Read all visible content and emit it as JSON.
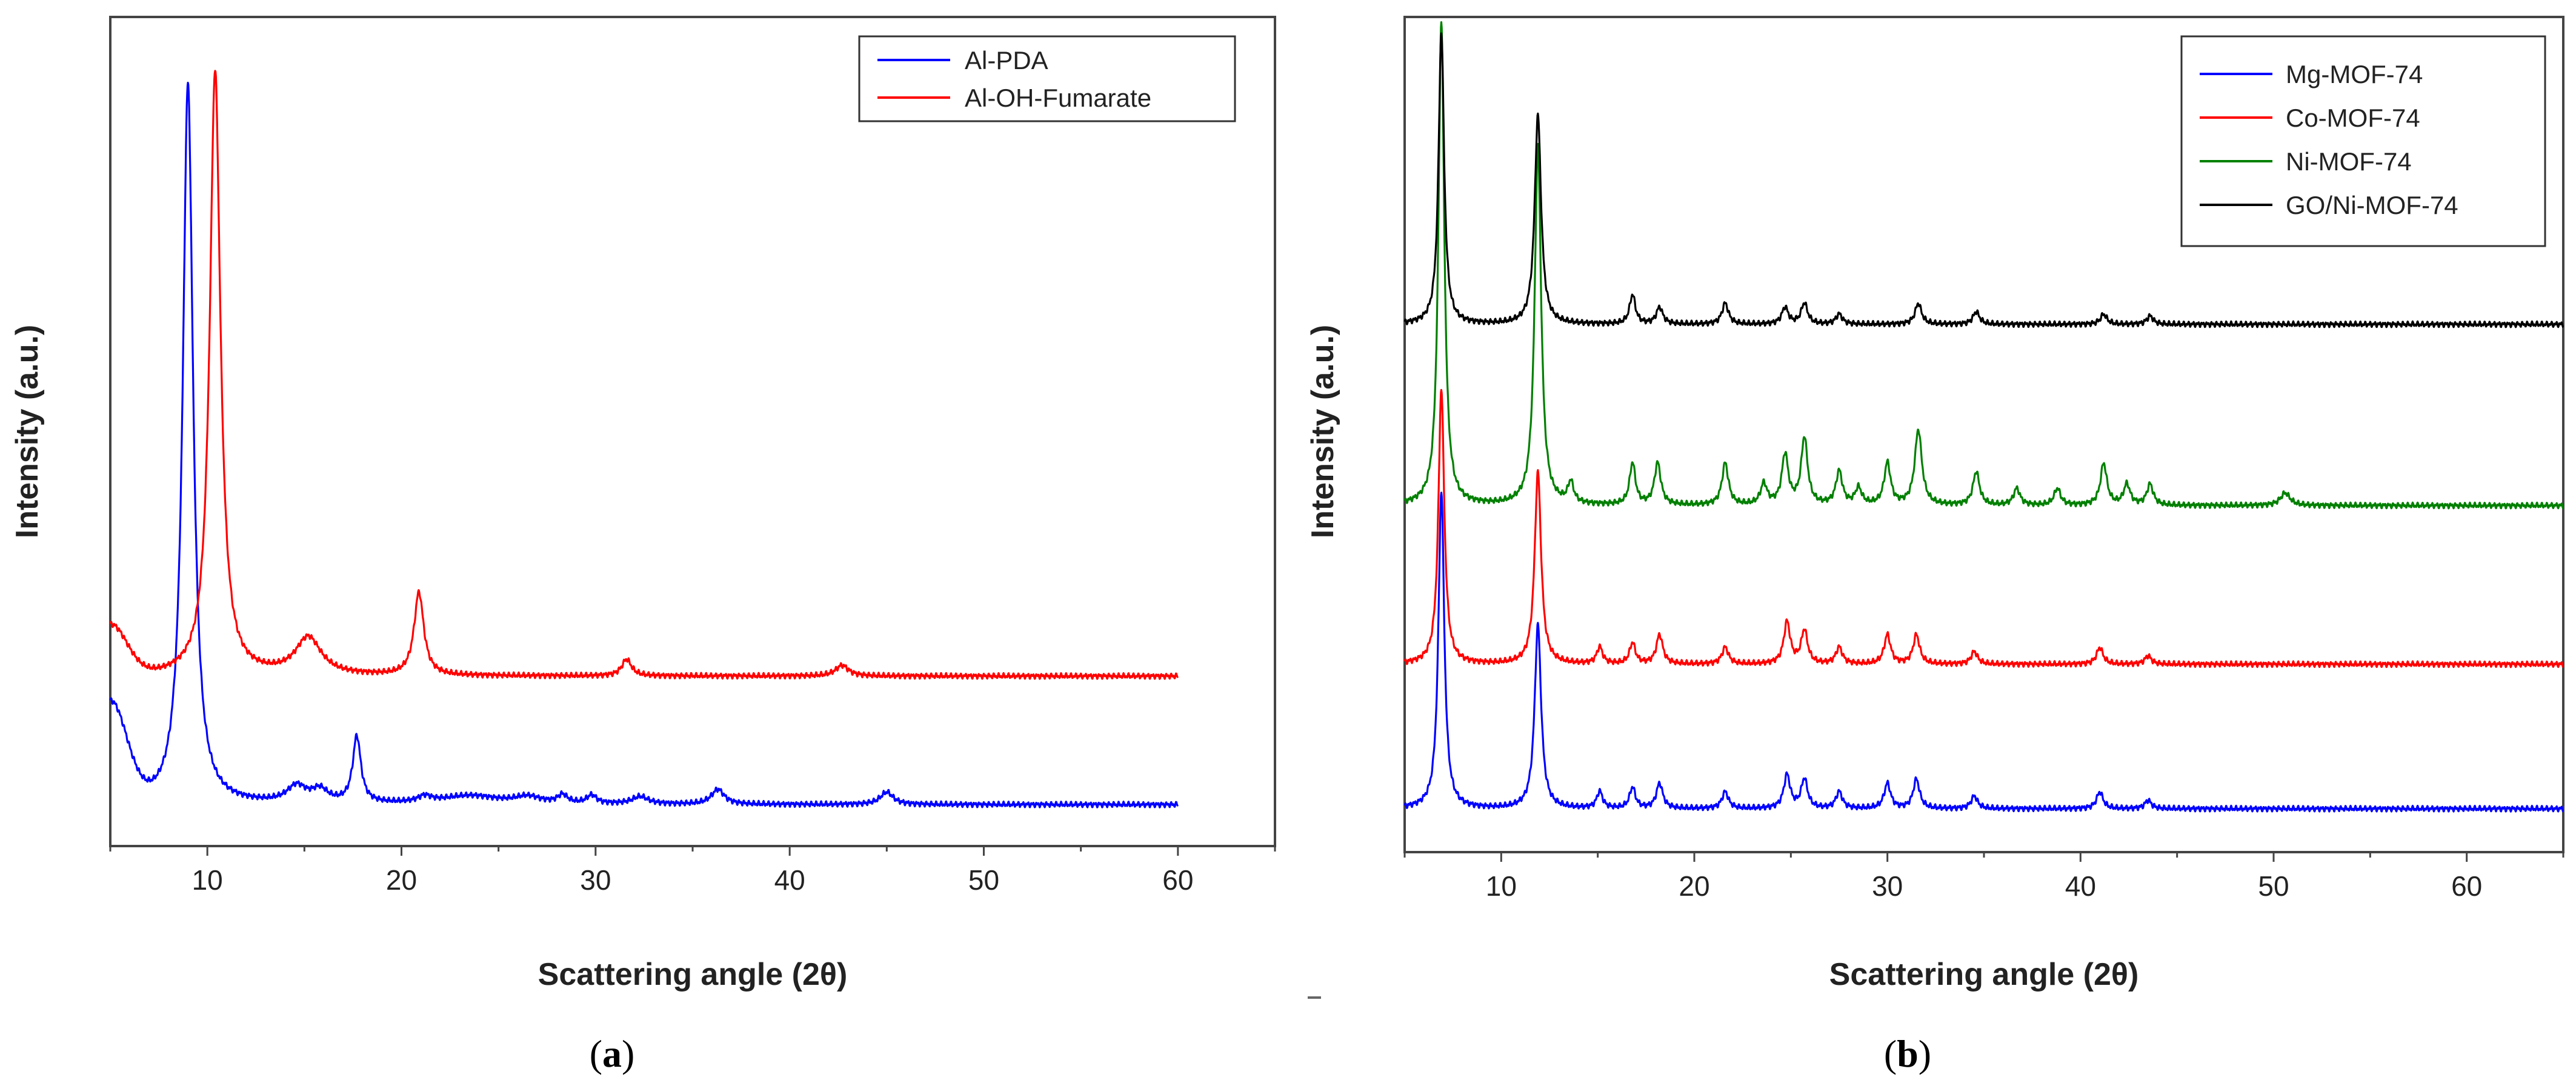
{
  "chart_data": [
    {
      "type": "line",
      "panel_label_open": "(",
      "panel_label_letter": "a",
      "panel_label_close": ")",
      "xlabel": "Scattering angle (2θ)",
      "ylabel": "Intensity (a.u.)",
      "xlim": [
        5,
        65
      ],
      "ylim": [
        0,
        100
      ],
      "xticks": [
        10,
        20,
        30,
        40,
        50,
        60
      ],
      "legend_position": "top-right",
      "series": [
        {
          "name": "Al-PDA",
          "color": "#0000ff",
          "offset": 3,
          "baseline": 2,
          "start_bump": 12,
          "x_range": [
            5,
            60
          ],
          "peaks": [
            [
              9.0,
              87,
              0.32
            ],
            [
              14.6,
              2,
              0.6
            ],
            [
              15.8,
              1.5,
              0.5
            ],
            [
              17.7,
              8,
              0.25
            ],
            [
              21.2,
              0.7,
              0.4
            ],
            [
              23.5,
              1.0,
              1.8
            ],
            [
              26.5,
              0.8,
              0.8
            ],
            [
              28.3,
              1.0,
              0.3
            ],
            [
              29.8,
              1.0,
              0.3
            ],
            [
              32.3,
              0.9,
              0.5
            ],
            [
              36.3,
              1.8,
              0.4
            ],
            [
              45.0,
              1.5,
              0.4
            ]
          ]
        },
        {
          "name": "Al-OH-Fumarate",
          "color": "#ff0000",
          "offset": 20,
          "baseline": 0.5,
          "start_bump": 6,
          "x_range": [
            5,
            60
          ],
          "peaks": [
            [
              10.4,
              73,
              0.33
            ],
            [
              15.2,
              4.5,
              0.8
            ],
            [
              20.9,
              10,
              0.3
            ],
            [
              31.6,
              2,
              0.3
            ],
            [
              42.7,
              1.3,
              0.4
            ]
          ]
        }
      ]
    },
    {
      "type": "line",
      "panel_label_open": "(",
      "panel_label_letter": "b",
      "panel_label_close": ")",
      "xlabel": "Scattering angle (2θ)",
      "ylabel": "Intensity (a.u.)",
      "xlim": [
        5,
        65
      ],
      "ylim": [
        0,
        100
      ],
      "xticks": [
        10,
        20,
        30,
        40,
        50,
        60
      ],
      "legend_position": "top-right",
      "series": [
        {
          "name": "Mg-MOF-74",
          "color": "#0000ff",
          "offset": 4,
          "baseline": 1.2,
          "start_bump": 0,
          "x_range": [
            5,
            65
          ],
          "peaks": [
            [
              6.9,
              38,
              0.18
            ],
            [
              11.9,
              22,
              0.2
            ],
            [
              15.1,
              2,
              0.18
            ],
            [
              16.8,
              2.5,
              0.18
            ],
            [
              18.2,
              3,
              0.2
            ],
            [
              21.6,
              2,
              0.2
            ],
            [
              24.8,
              4,
              0.2
            ],
            [
              25.7,
              3.5,
              0.2
            ],
            [
              27.5,
              2,
              0.2
            ],
            [
              30.0,
              3,
              0.2
            ],
            [
              31.5,
              3.5,
              0.2
            ],
            [
              34.5,
              1.5,
              0.2
            ],
            [
              41.0,
              2,
              0.2
            ],
            [
              43.5,
              1,
              0.2
            ]
          ]
        },
        {
          "name": "Co-MOF-74",
          "color": "#ff0000",
          "offset": 20,
          "baseline": 2.5,
          "start_bump": 0,
          "x_range": [
            5,
            65
          ],
          "peaks": [
            [
              6.9,
              33,
              0.18
            ],
            [
              11.9,
              23,
              0.2
            ],
            [
              15.1,
              2,
              0.18
            ],
            [
              16.8,
              2.5,
              0.18
            ],
            [
              18.2,
              3.5,
              0.2
            ],
            [
              21.6,
              2,
              0.2
            ],
            [
              24.8,
              5,
              0.2
            ],
            [
              25.7,
              4,
              0.2
            ],
            [
              27.5,
              2,
              0.2
            ],
            [
              30.0,
              3.5,
              0.2
            ],
            [
              31.5,
              3.5,
              0.2
            ],
            [
              34.5,
              1.5,
              0.2
            ],
            [
              41.0,
              2,
              0.2
            ],
            [
              43.5,
              1,
              0.2
            ]
          ]
        },
        {
          "name": "Ni-MOF-74",
          "color": "#008000",
          "offset": 40,
          "baseline": 1.5,
          "start_bump": 0,
          "x_range": [
            5,
            65
          ],
          "peaks": [
            [
              6.9,
              58,
              0.18
            ],
            [
              11.9,
              43,
              0.2
            ],
            [
              13.6,
              2.5,
              0.18
            ],
            [
              16.8,
              5,
              0.18
            ],
            [
              18.1,
              5,
              0.2
            ],
            [
              21.6,
              5,
              0.2
            ],
            [
              23.6,
              2.5,
              0.2
            ],
            [
              24.7,
              6,
              0.2
            ],
            [
              25.7,
              8,
              0.2
            ],
            [
              27.5,
              4,
              0.2
            ],
            [
              28.5,
              2,
              0.2
            ],
            [
              30.0,
              5,
              0.2
            ],
            [
              31.6,
              9,
              0.22
            ],
            [
              34.6,
              4,
              0.2
            ],
            [
              36.7,
              2,
              0.2
            ],
            [
              38.8,
              2,
              0.2
            ],
            [
              41.2,
              5,
              0.2
            ],
            [
              42.4,
              2.5,
              0.2
            ],
            [
              43.6,
              2.5,
              0.2
            ],
            [
              50.6,
              1.5,
              0.3
            ]
          ]
        },
        {
          "name": "GO/Ni-MOF-74",
          "color": "#000000",
          "offset": 62,
          "baseline": 1.2,
          "start_bump": 0,
          "x_range": [
            5,
            65
          ],
          "peaks": [
            [
              6.9,
              35,
              0.17
            ],
            [
              11.9,
              25,
              0.2
            ],
            [
              16.8,
              3.5,
              0.18
            ],
            [
              18.2,
              2,
              0.2
            ],
            [
              21.6,
              2.5,
              0.2
            ],
            [
              24.7,
              2,
              0.2
            ],
            [
              25.7,
              2.5,
              0.2
            ],
            [
              27.5,
              1.2,
              0.2
            ],
            [
              31.6,
              2.5,
              0.2
            ],
            [
              34.6,
              1.5,
              0.2
            ],
            [
              41.2,
              1.2,
              0.2
            ],
            [
              43.6,
              1,
              0.2
            ]
          ]
        }
      ]
    }
  ]
}
